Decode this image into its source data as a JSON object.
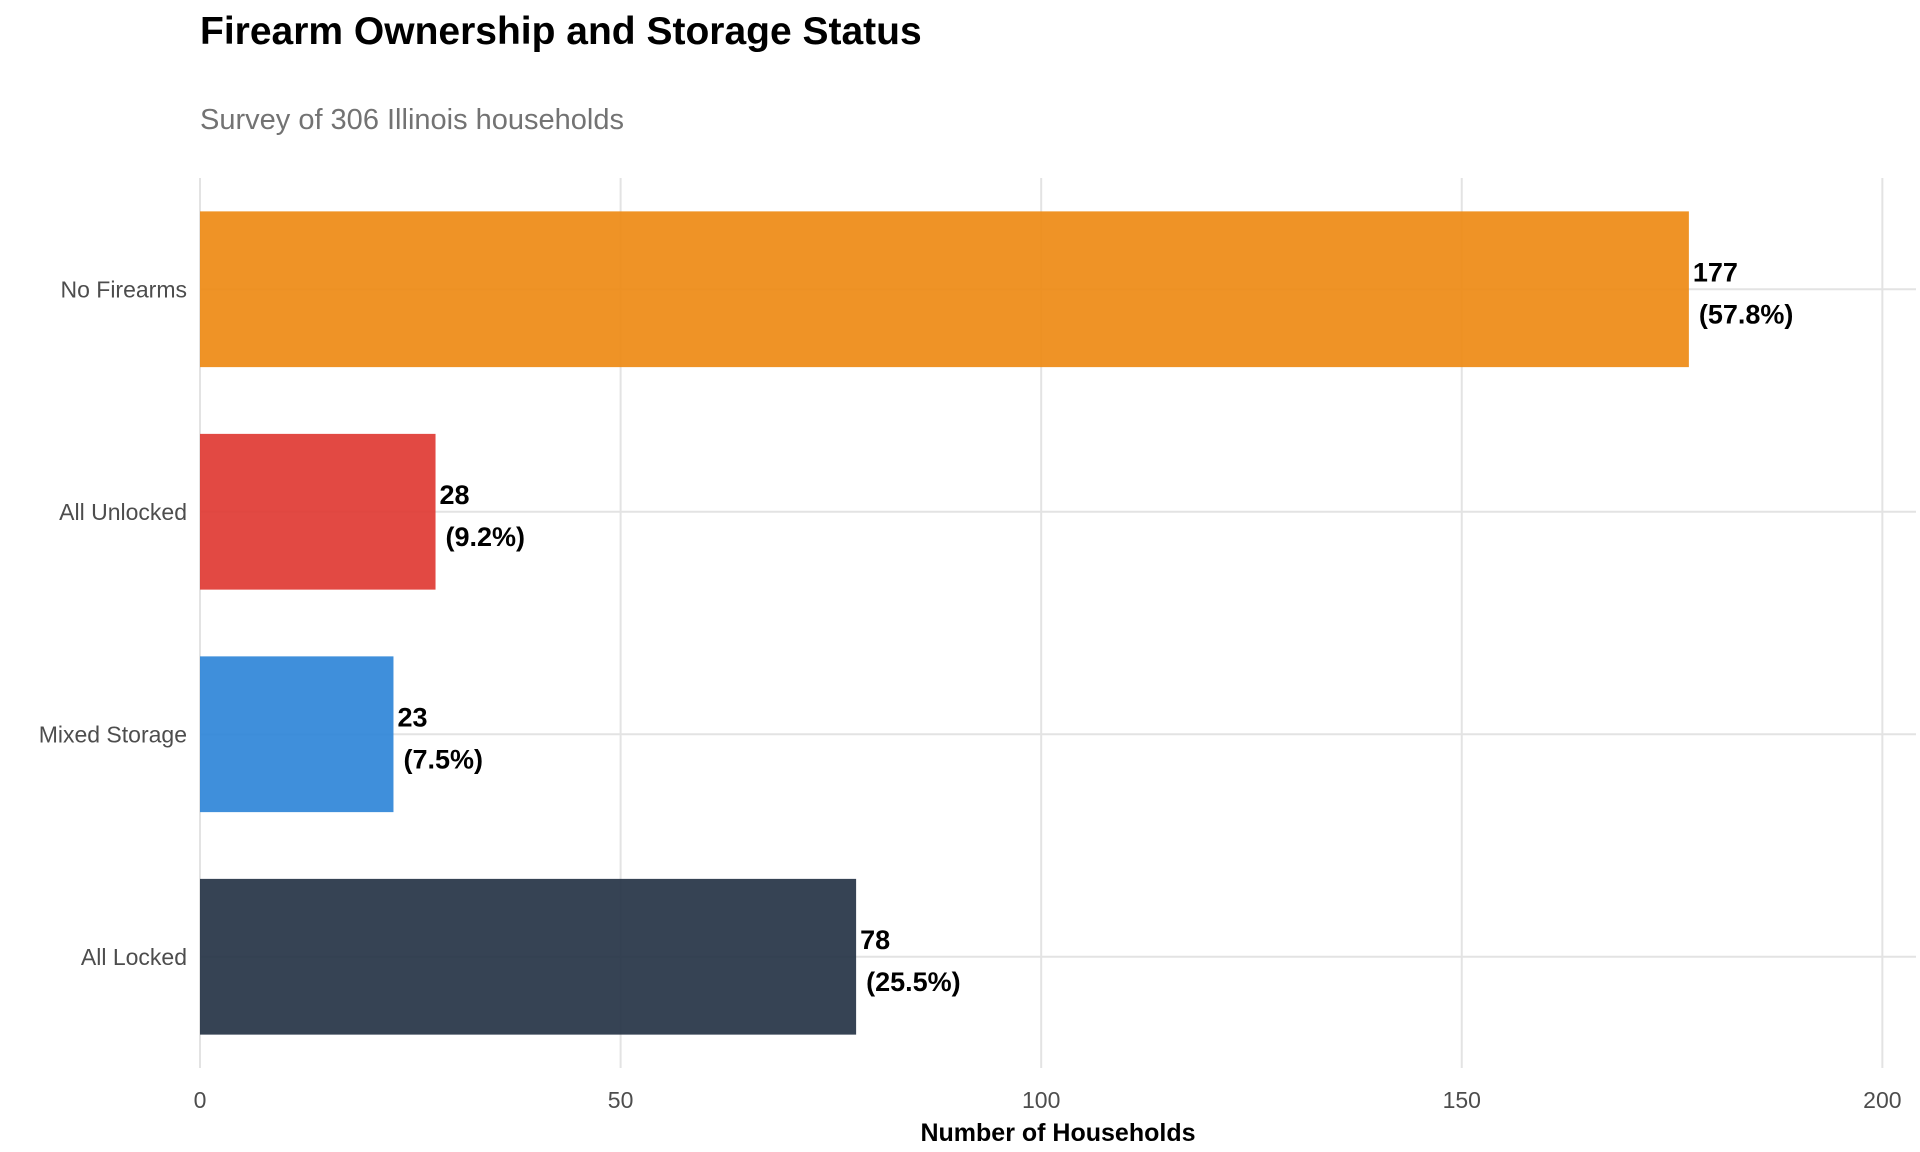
{
  "chart_data": {
    "type": "bar",
    "orientation": "horizontal",
    "title": "Firearm Ownership and Storage Status",
    "subtitle": "Survey of 306 Illinois households",
    "xlabel": "Number of Households",
    "ylabel": "",
    "xlim": [
      0,
      204
    ],
    "x_ticks": [
      0,
      50,
      100,
      150,
      200
    ],
    "grid": true,
    "legend": "none",
    "categories": [
      "No Firearms",
      "All Unlocked",
      "Mixed Storage",
      "All Locked"
    ],
    "values": [
      177,
      28,
      23,
      78
    ],
    "percent_labels": [
      "(57.8%)",
      "(9.2%)",
      "(7.5%)",
      "(25.5%)"
    ],
    "colors": [
      "#EE8A14",
      "#E03A33",
      "#2F85D8",
      "#253345"
    ]
  }
}
